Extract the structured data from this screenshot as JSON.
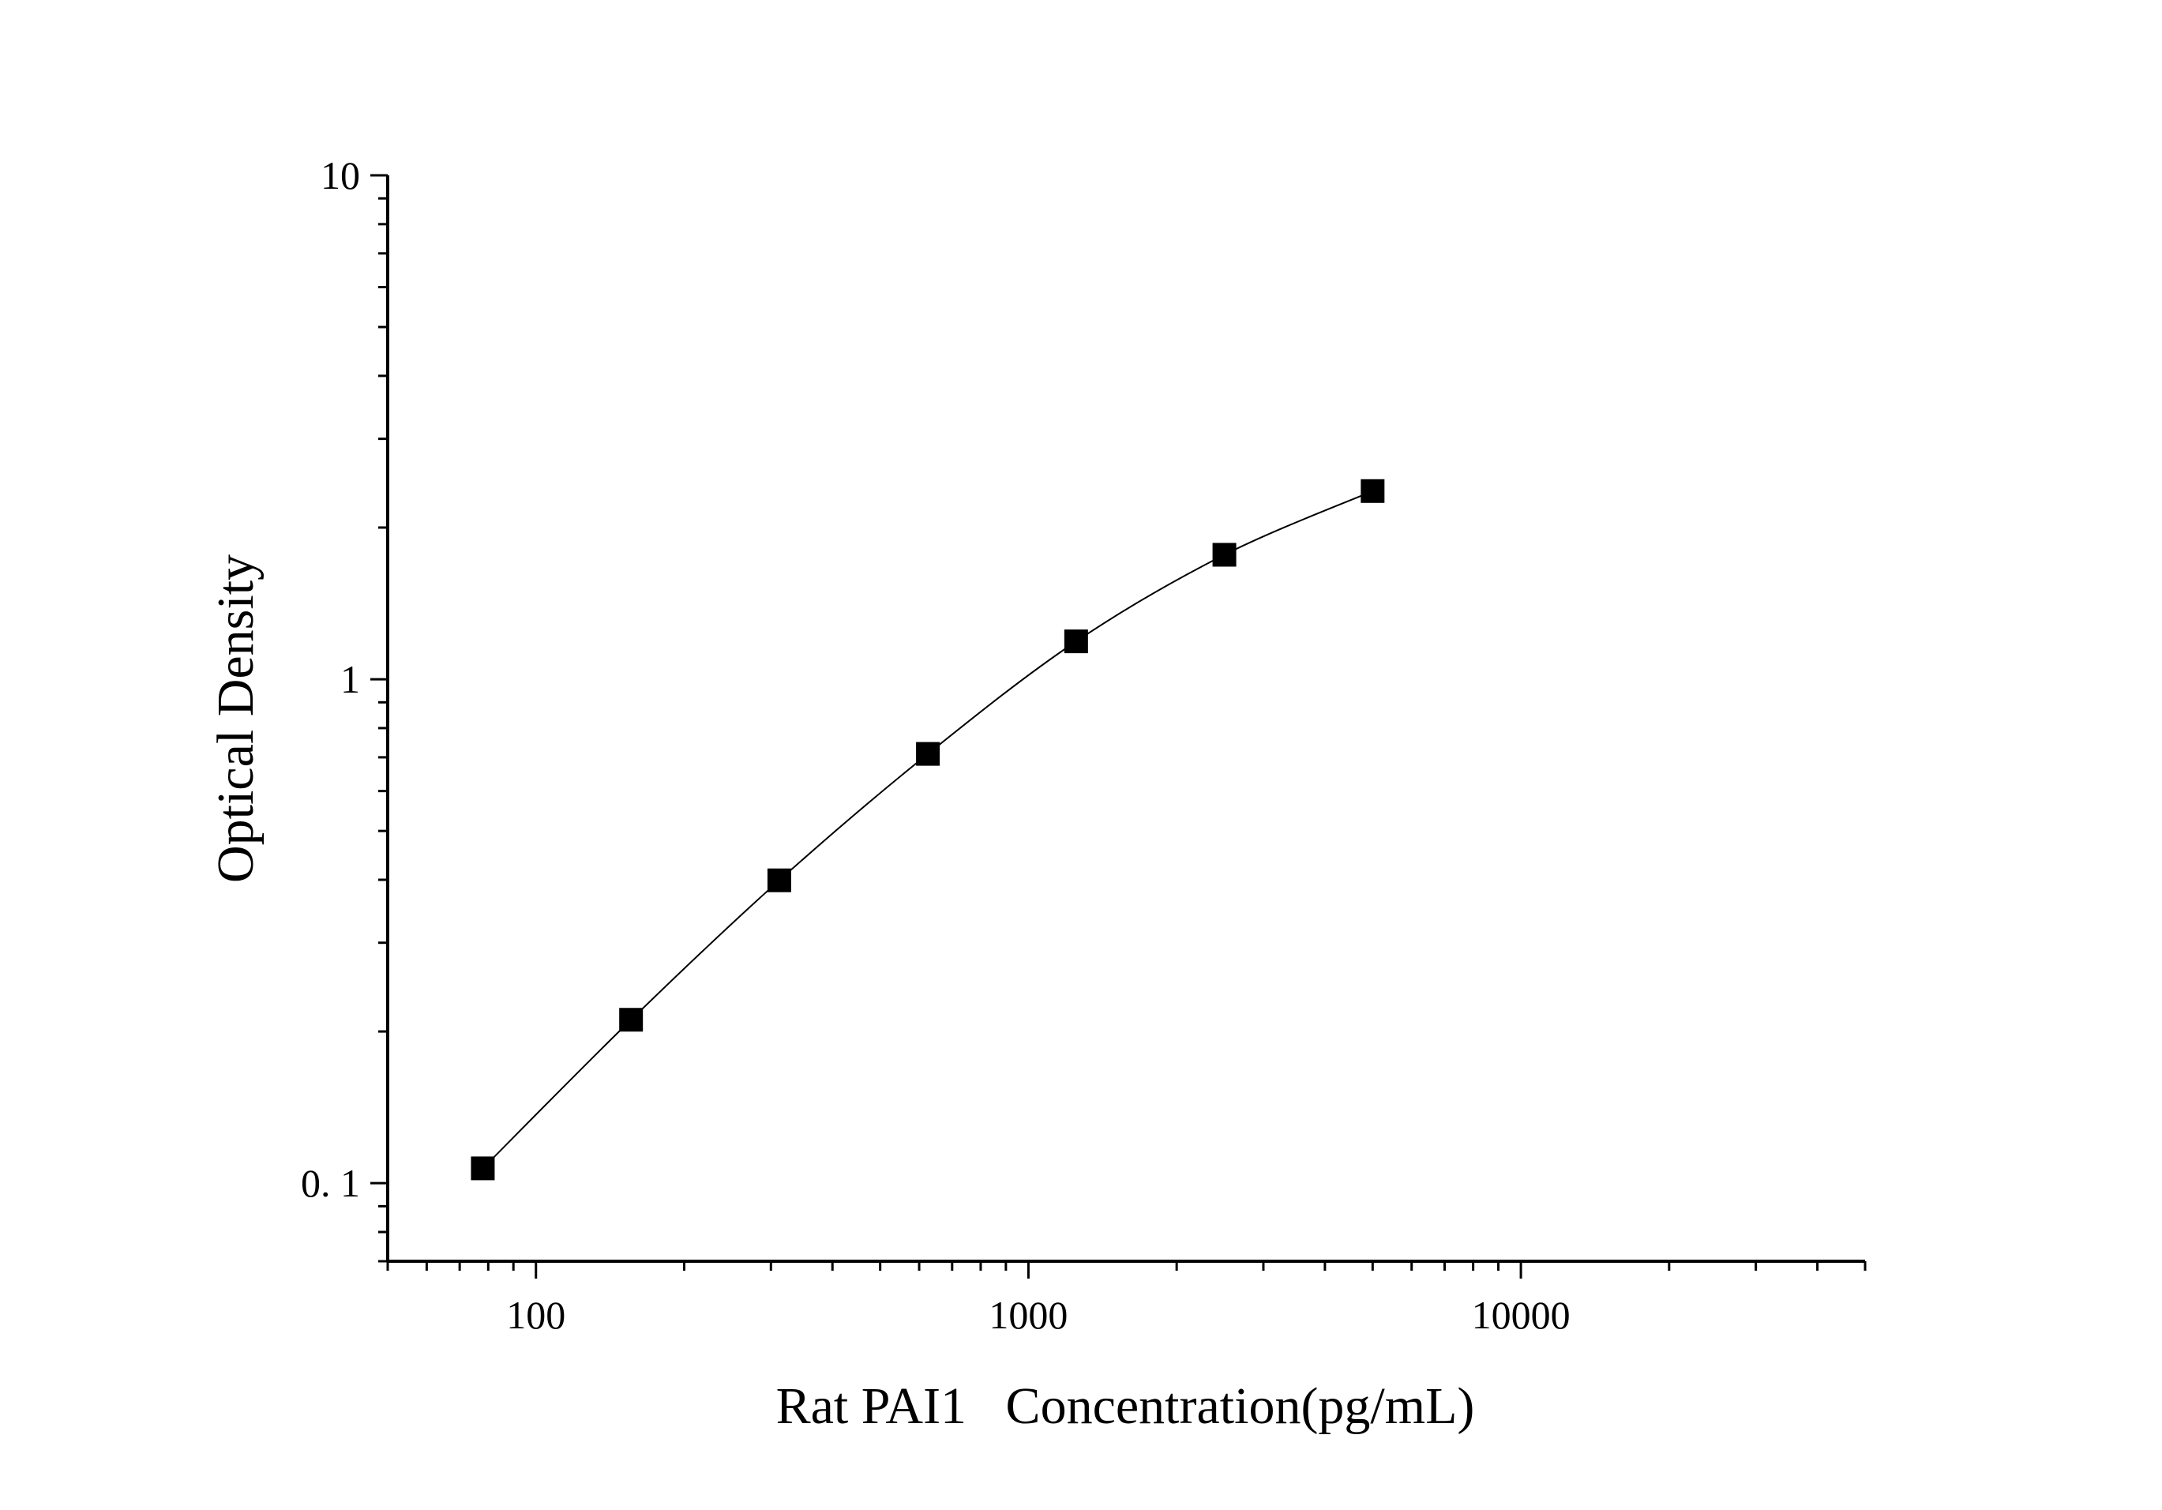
{
  "chart_data": {
    "type": "scatter",
    "title": "",
    "xlabel": "Rat PAI1   Concentration(pg/mL)",
    "ylabel": "Optical Density",
    "x_scale": "log",
    "y_scale": "log",
    "xlim": [
      50,
      50000
    ],
    "ylim": [
      0.07,
      10
    ],
    "x_ticks": [
      {
        "value": 100,
        "label": "100"
      },
      {
        "value": 1000,
        "label": "1000"
      },
      {
        "value": 10000,
        "label": "10000"
      }
    ],
    "y_ticks": [
      {
        "value": 0.1,
        "label": "0. 1"
      },
      {
        "value": 1,
        "label": "1"
      },
      {
        "value": 10,
        "label": "10"
      }
    ],
    "grid": false,
    "legend": "none",
    "series": [
      {
        "marker": "square",
        "fit_line": true,
        "x": [
          78,
          156,
          312,
          625,
          1250,
          2500,
          5000
        ],
        "y": [
          0.107,
          0.211,
          0.399,
          0.711,
          1.189,
          1.766,
          2.363
        ]
      }
    ],
    "colors": {
      "marker": "#000000",
      "line": "#000000",
      "axis": "#000000",
      "background": "#ffffff"
    }
  }
}
